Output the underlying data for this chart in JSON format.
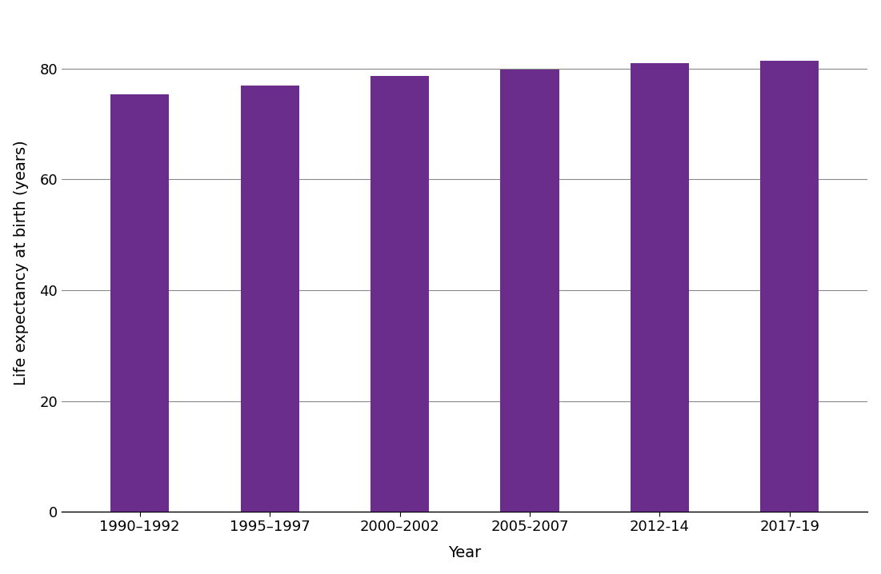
{
  "categories": [
    "1990–1992",
    "1995–1997",
    "2000–2002",
    "2005-2007",
    "2012-14",
    "2017-19"
  ],
  "values": [
    75.3,
    77.0,
    78.7,
    79.8,
    81.0,
    81.5
  ],
  "bar_color": "#6B2D8B",
  "xlabel": "Year",
  "ylabel": "Life expectancy at birth (years)",
  "ylim": [
    0,
    90
  ],
  "yticks": [
    0,
    20,
    40,
    60,
    80
  ],
  "grid_color": "#888888",
  "background_color": "#ffffff",
  "xlabel_fontsize": 14,
  "ylabel_fontsize": 14,
  "tick_fontsize": 13,
  "bar_width": 0.45,
  "figsize": [
    11.01,
    7.18
  ],
  "dpi": 100
}
